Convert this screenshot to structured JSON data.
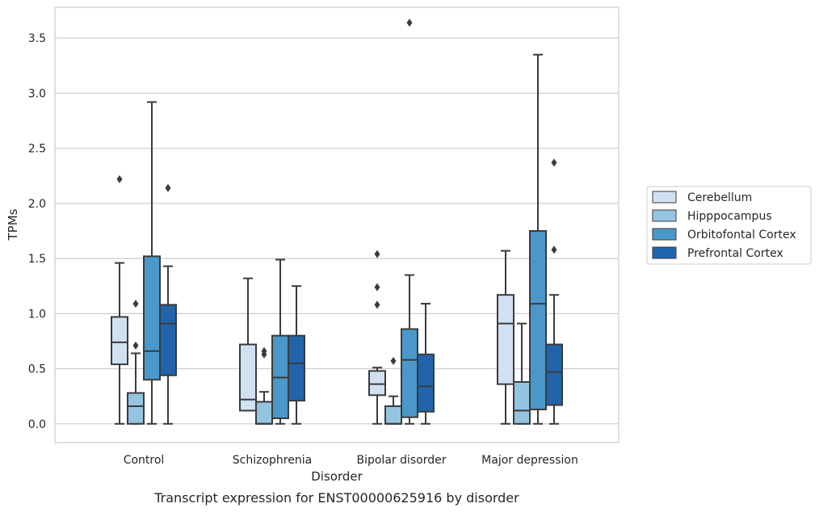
{
  "chart_data": {
    "type": "box",
    "xlabel": "Disorder",
    "ylabel": "TPMs",
    "caption": "Transcript expression for ENST00000625916 by disorder",
    "categories": [
      "Control",
      "Schizophrenia",
      "Bipolar disorder",
      "Major depression"
    ],
    "ylim": [
      -0.17,
      3.78
    ],
    "yticks": [
      "0.0",
      "0.5",
      "1.0",
      "1.5",
      "2.0",
      "2.5",
      "3.0",
      "3.5"
    ],
    "grid": "horizontal",
    "legend_position": "right",
    "series": [
      {
        "name": "Cerebellum",
        "color": "#d0e1f2",
        "boxes": [
          {
            "whisker_low": 0.0,
            "q1": 0.54,
            "median": 0.74,
            "q3": 0.97,
            "whisker_high": 1.46,
            "outliers": [
              2.22
            ]
          },
          {
            "whisker_low": 0.12,
            "q1": 0.12,
            "median": 0.22,
            "q3": 0.72,
            "whisker_high": 1.32,
            "outliers": []
          },
          {
            "whisker_low": 0.0,
            "q1": 0.26,
            "median": 0.36,
            "q3": 0.48,
            "whisker_high": 0.51,
            "outliers": [
              1.08,
              1.24,
              1.54
            ]
          },
          {
            "whisker_low": 0.0,
            "q1": 0.36,
            "median": 0.91,
            "q3": 1.17,
            "whisker_high": 1.57,
            "outliers": []
          }
        ]
      },
      {
        "name": "Hipppocampus",
        "color": "#94c4df",
        "boxes": [
          {
            "whisker_low": 0.0,
            "q1": 0.0,
            "median": 0.16,
            "q3": 0.28,
            "whisker_high": 0.64,
            "outliers": [
              0.71,
              1.09
            ]
          },
          {
            "whisker_low": 0.0,
            "q1": 0.0,
            "median": 0.0,
            "q3": 0.2,
            "whisker_high": 0.29,
            "outliers": [
              0.63,
              0.66
            ]
          },
          {
            "whisker_low": 0.0,
            "q1": 0.0,
            "median": 0.0,
            "q3": 0.16,
            "whisker_high": 0.25,
            "outliers": [
              0.57
            ]
          },
          {
            "whisker_low": 0.0,
            "q1": 0.0,
            "median": 0.12,
            "q3": 0.38,
            "whisker_high": 0.91,
            "outliers": []
          }
        ]
      },
      {
        "name": "Orbitofontal Cortex",
        "color": "#4a98c9",
        "boxes": [
          {
            "whisker_low": 0.0,
            "q1": 0.4,
            "median": 0.66,
            "q3": 1.52,
            "whisker_high": 2.92,
            "outliers": []
          },
          {
            "whisker_low": 0.0,
            "q1": 0.05,
            "median": 0.42,
            "q3": 0.8,
            "whisker_high": 1.49,
            "outliers": []
          },
          {
            "whisker_low": 0.0,
            "q1": 0.06,
            "median": 0.58,
            "q3": 0.86,
            "whisker_high": 1.35,
            "outliers": [
              3.64
            ]
          },
          {
            "whisker_low": 0.0,
            "q1": 0.13,
            "median": 1.09,
            "q3": 1.75,
            "whisker_high": 3.35,
            "outliers": []
          }
        ]
      },
      {
        "name": "Prefrontal Cortex",
        "color": "#2164ab",
        "boxes": [
          {
            "whisker_low": 0.0,
            "q1": 0.44,
            "median": 0.91,
            "q3": 1.08,
            "whisker_high": 1.43,
            "outliers": [
              2.14
            ]
          },
          {
            "whisker_low": 0.0,
            "q1": 0.21,
            "median": 0.55,
            "q3": 0.8,
            "whisker_high": 1.25,
            "outliers": []
          },
          {
            "whisker_low": 0.0,
            "q1": 0.11,
            "median": 0.34,
            "q3": 0.63,
            "whisker_high": 1.09,
            "outliers": []
          },
          {
            "whisker_low": 0.0,
            "q1": 0.17,
            "median": 0.47,
            "q3": 0.72,
            "whisker_high": 1.17,
            "outliers": [
              1.58,
              2.37
            ]
          }
        ]
      }
    ]
  }
}
